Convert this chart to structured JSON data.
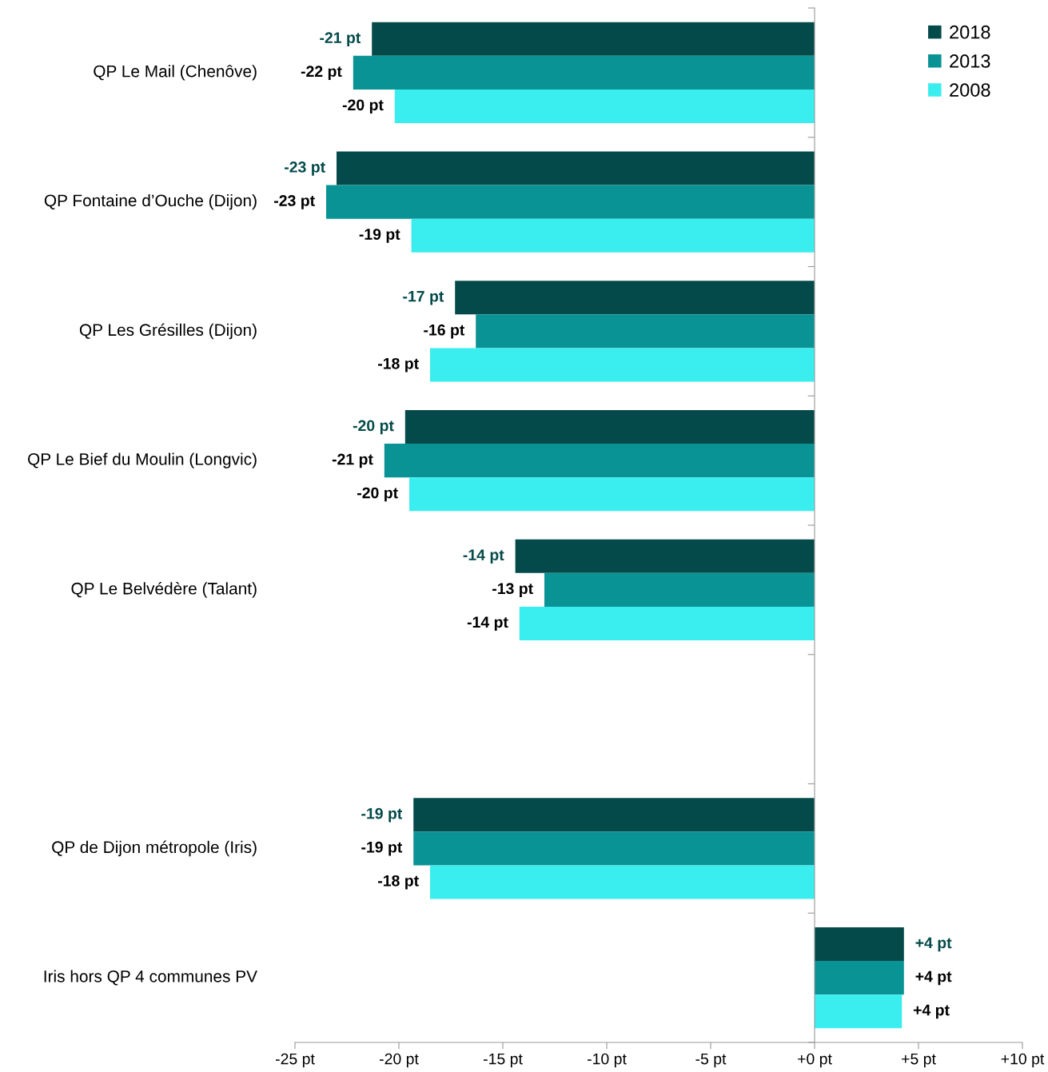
{
  "chart_data": {
    "type": "bar",
    "orientation": "horizontal",
    "categories": [
      "QP Le Mail (Chenôve)",
      "QP Fontaine d’Ouche (Dijon)",
      "QP Les Grésilles (Dijon)",
      "QP Le Bief du Moulin (Longvic)",
      "QP Le Belvédère (Talant)",
      null,
      "QP de Dijon métropole (Iris)",
      "Iris hors QP 4 communes PV"
    ],
    "series": [
      {
        "name": "2018",
        "color": "#054a4a",
        "values": [
          -21.3,
          -23.0,
          -17.3,
          -19.7,
          -14.4,
          null,
          -19.3,
          4.3
        ],
        "value_labels": [
          "-21 pt",
          "-23 pt",
          "-17 pt",
          "-20 pt",
          "-14 pt",
          null,
          "-19 pt",
          "+4 pt"
        ]
      },
      {
        "name": "2013",
        "color": "#0a9394",
        "values": [
          -22.2,
          -23.5,
          -16.3,
          -20.7,
          -13.0,
          null,
          -19.3,
          4.3
        ],
        "value_labels": [
          "-22 pt",
          "-23 pt",
          "-16 pt",
          "-21 pt",
          "-13 pt",
          null,
          "-19 pt",
          "+4 pt"
        ]
      },
      {
        "name": "2008",
        "color": "#3aeef0",
        "values": [
          -20.2,
          -19.4,
          -18.5,
          -19.5,
          -14.2,
          null,
          -18.5,
          4.2
        ],
        "value_labels": [
          "-20 pt",
          "-19 pt",
          "-18 pt",
          "-20 pt",
          "-14 pt",
          null,
          "-18 pt",
          "+4 pt"
        ]
      }
    ],
    "xlim": [
      -25,
      10
    ],
    "xticks": [
      {
        "value": -25,
        "label": "-25 pt"
      },
      {
        "value": -20,
        "label": "-20 pt"
      },
      {
        "value": -15,
        "label": "-15 pt"
      },
      {
        "value": -10,
        "label": "-10 pt"
      },
      {
        "value": -5,
        "label": "-5 pt"
      },
      {
        "value": 0,
        "label": "+0 pt"
      },
      {
        "value": 5,
        "label": "+5 pt"
      },
      {
        "value": 10,
        "label": "+10 pt"
      }
    ],
    "legend": "top right"
  }
}
